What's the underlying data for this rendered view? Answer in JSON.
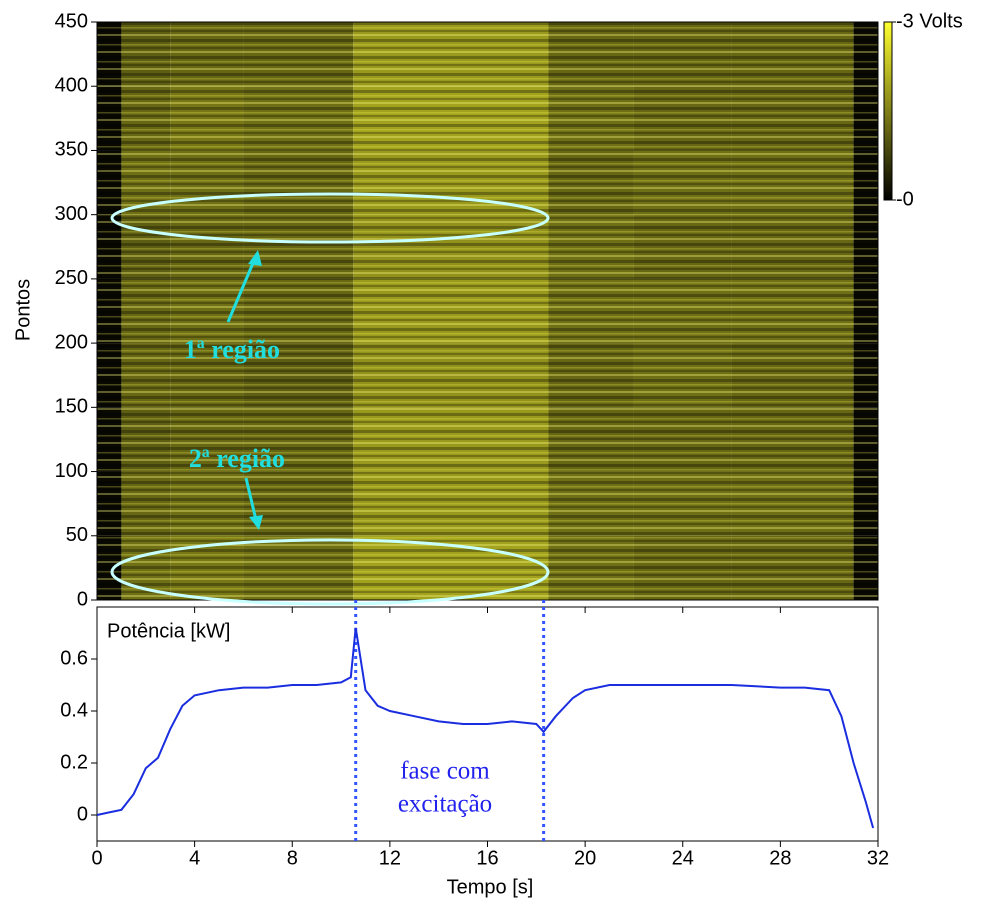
{
  "chart_data": [
    {
      "type": "heatmap",
      "ylabel": "Pontos",
      "annotations": [
        "1ª região",
        "2ª região"
      ],
      "x_bins": [
        0,
        1,
        3,
        6,
        10.5,
        18.5,
        22,
        26,
        31,
        32
      ],
      "y_bins": [
        0,
        50,
        100,
        150,
        200,
        250,
        300,
        350,
        400,
        450
      ],
      "values": [
        [
          0.1,
          1.3,
          1.4,
          1.3,
          1.9,
          1.3,
          1.2,
          1.2,
          0.1
        ],
        [
          0.1,
          1.2,
          1.3,
          1.2,
          1.8,
          1.3,
          1.3,
          1.3,
          0.1
        ],
        [
          0.1,
          1.1,
          1.2,
          1.2,
          1.8,
          1.2,
          1.2,
          1.2,
          0.1
        ],
        [
          0.1,
          1.2,
          1.2,
          1.1,
          1.7,
          1.2,
          1.3,
          1.2,
          0.1
        ],
        [
          0.1,
          1.2,
          1.3,
          1.2,
          1.8,
          1.3,
          1.3,
          1.3,
          0.1
        ],
        [
          0.1,
          1.1,
          1.2,
          1.2,
          1.7,
          1.3,
          1.2,
          1.2,
          0.1
        ],
        [
          0.1,
          1.3,
          1.3,
          1.2,
          1.8,
          1.2,
          1.3,
          1.3,
          0.1
        ],
        [
          0.1,
          1.2,
          1.4,
          1.3,
          1.9,
          1.3,
          1.2,
          1.2,
          0.1
        ],
        [
          0.1,
          1.1,
          1.2,
          1.2,
          1.8,
          1.2,
          1.2,
          1.2,
          0.1
        ]
      ],
      "xlim": [
        0,
        32
      ],
      "ylim": [
        0,
        450
      ],
      "yticks": [
        0,
        50,
        100,
        150,
        200,
        250,
        300,
        350,
        400,
        450
      ],
      "colorbar": {
        "lim": [
          0,
          3
        ],
        "colors": [
          "#000000",
          "#ffff30"
        ],
        "ticks": [
          {
            "value": 3,
            "label": "-3 Volts"
          },
          {
            "value": 0,
            "label": "-0"
          }
        ]
      }
    },
    {
      "type": "line",
      "xlabel": "Tempo [s]",
      "ylabel": "Potência [kW]",
      "annotations": [
        "fase com",
        "excitação"
      ],
      "vlines": [
        10.6,
        18.3
      ],
      "color": "#1a2ee0",
      "x": [
        0,
        0.5,
        1,
        1.5,
        2,
        2.5,
        3,
        3.5,
        4,
        5,
        6,
        7,
        8,
        9,
        10,
        10.4,
        10.6,
        11,
        11.5,
        12,
        13,
        14,
        15,
        16,
        17,
        18,
        18.3,
        18.8,
        19.5,
        20,
        21,
        22,
        24,
        26,
        28,
        29,
        30,
        30.5,
        31,
        31.5,
        31.8
      ],
      "values": [
        0.0,
        0.01,
        0.02,
        0.08,
        0.18,
        0.22,
        0.33,
        0.42,
        0.46,
        0.48,
        0.49,
        0.49,
        0.5,
        0.5,
        0.51,
        0.53,
        0.72,
        0.48,
        0.42,
        0.4,
        0.38,
        0.36,
        0.35,
        0.35,
        0.36,
        0.35,
        0.32,
        0.38,
        0.45,
        0.48,
        0.5,
        0.5,
        0.5,
        0.5,
        0.49,
        0.49,
        0.48,
        0.38,
        0.2,
        0.05,
        -0.05
      ],
      "xlim": [
        0,
        32
      ],
      "ylim": [
        -0.1,
        0.8
      ],
      "xticks": [
        0,
        4,
        8,
        12,
        16,
        20,
        24,
        28,
        32
      ],
      "yticks": [
        0,
        0.2,
        0.4,
        0.6
      ]
    }
  ]
}
